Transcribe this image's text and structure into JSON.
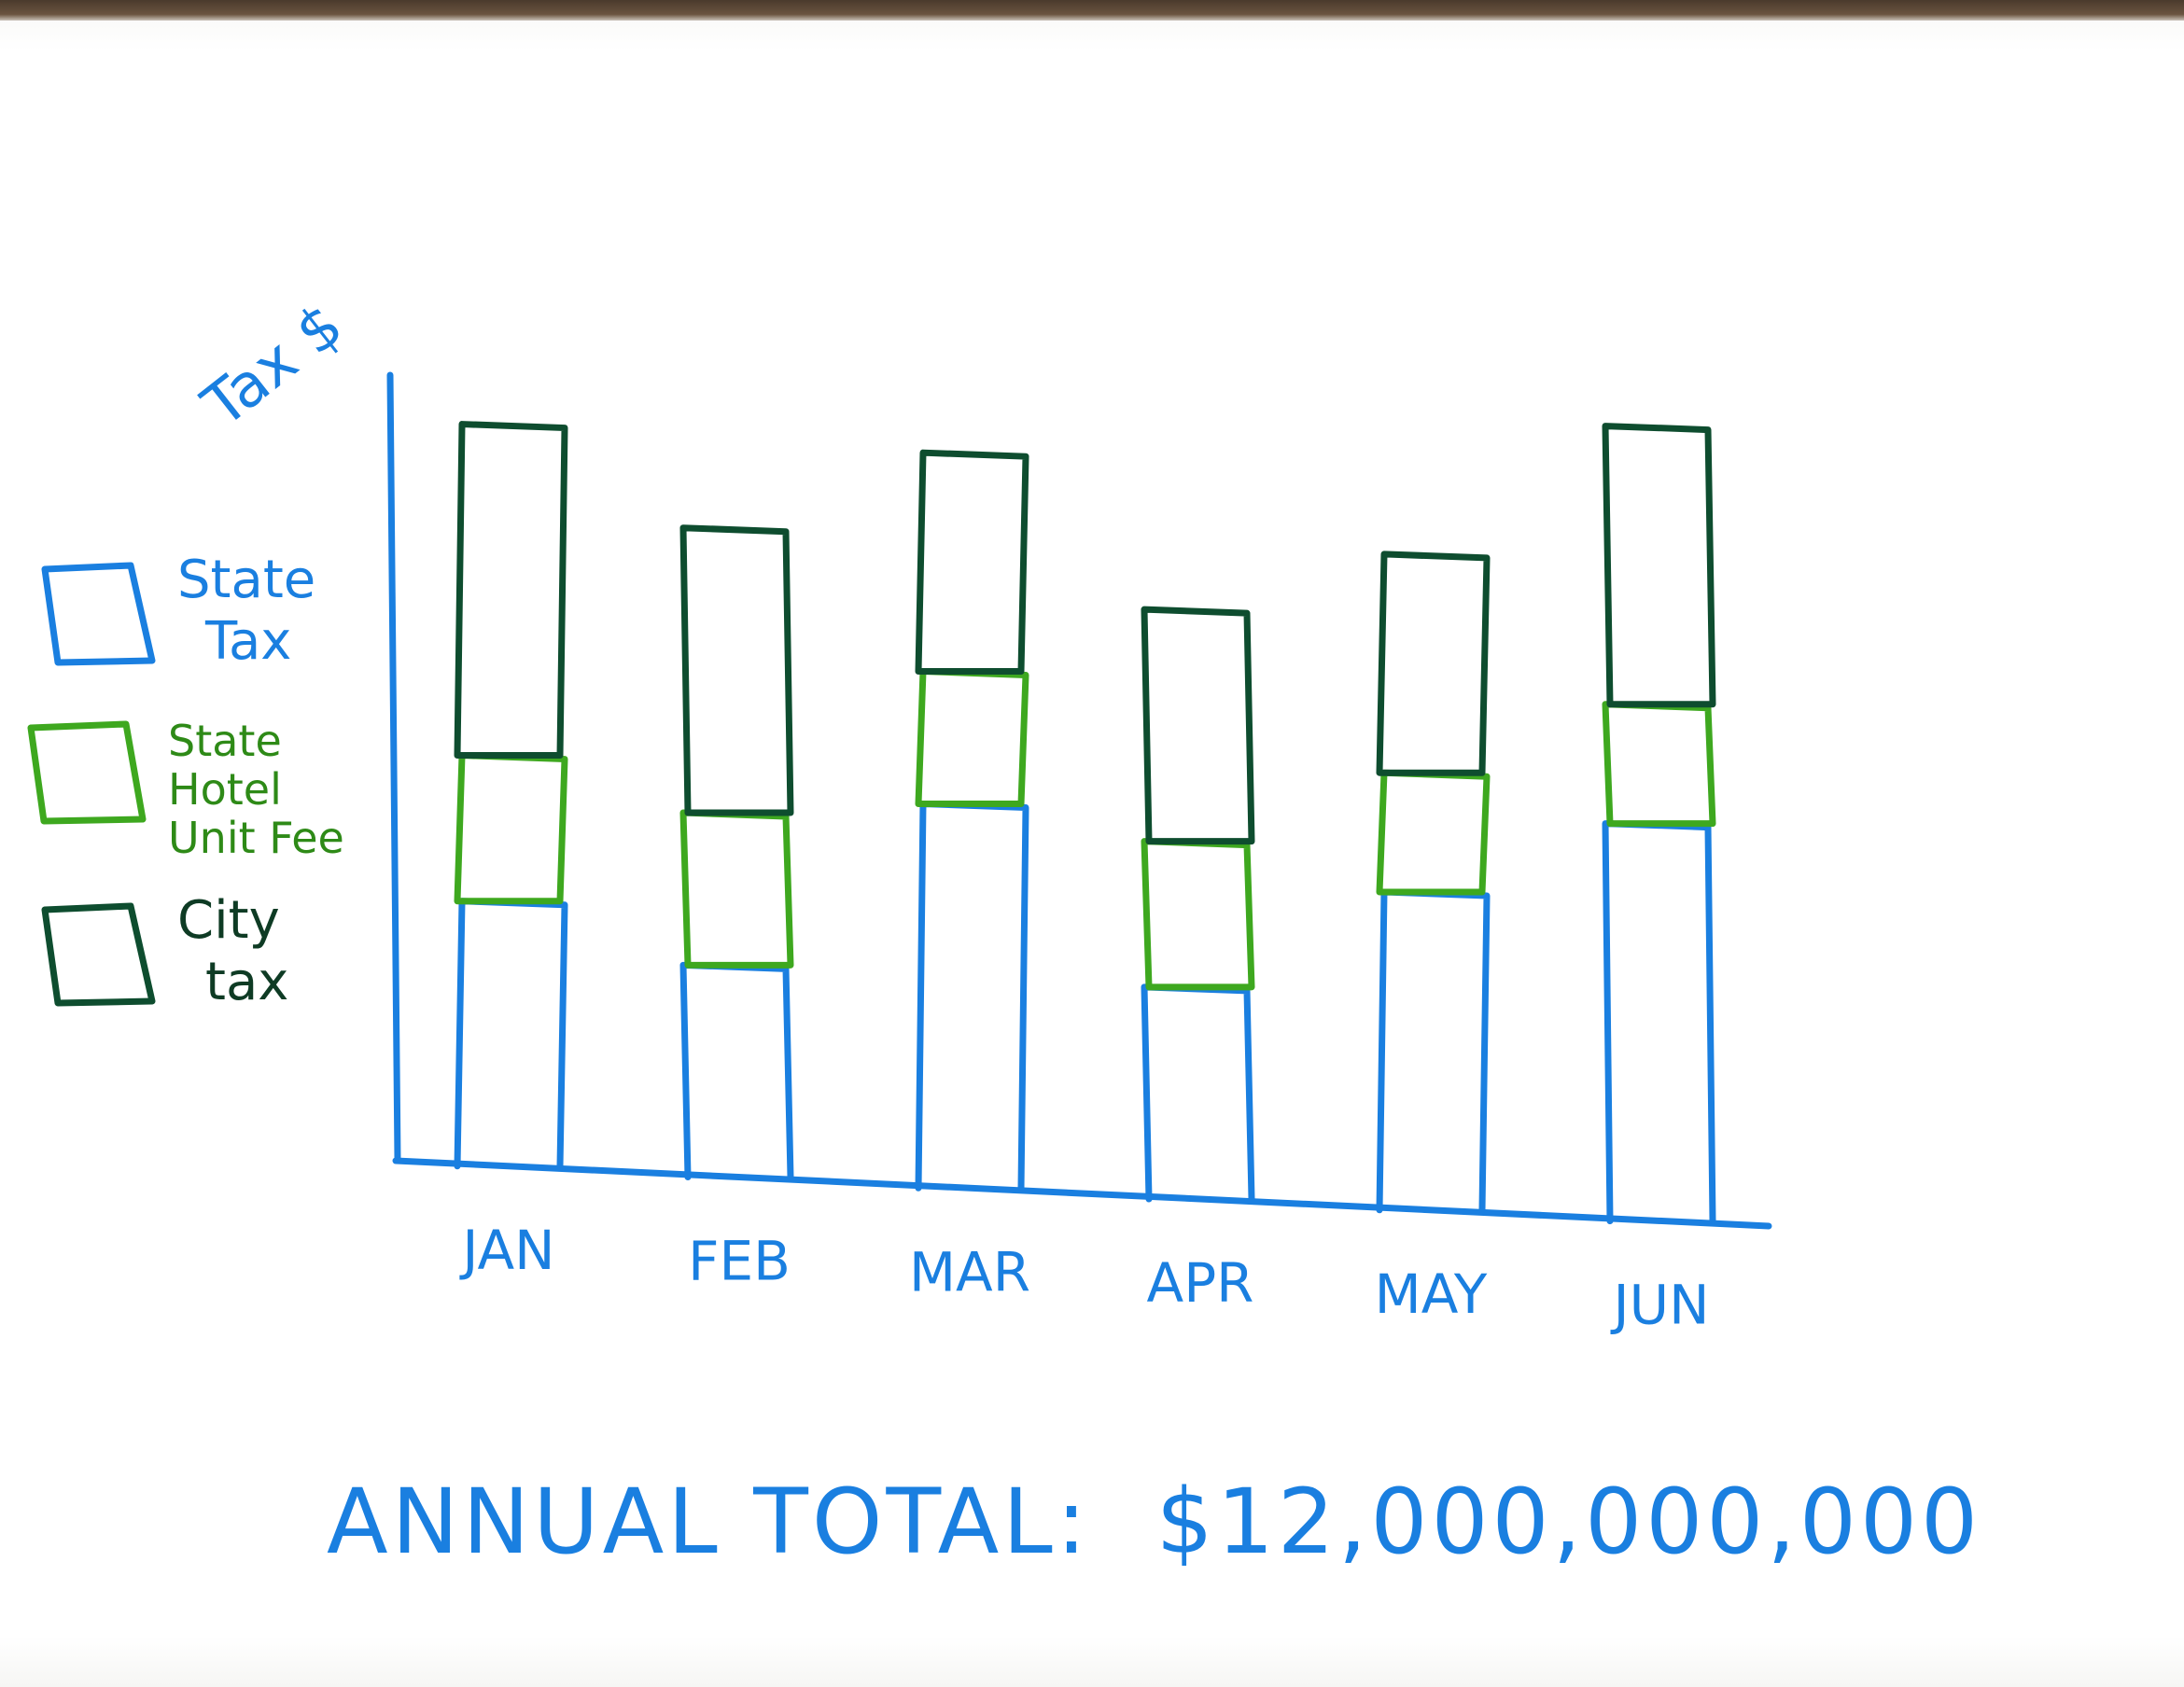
{
  "chart_data": {
    "type": "bar",
    "stacked": true,
    "ylabel": "Tax $",
    "categories": [
      "JAN",
      "FEB",
      "MAR",
      "APR",
      "MAY",
      "JUN"
    ],
    "series": [
      {
        "name": "State Tax",
        "color": "#1a7fe0",
        "values": [
          40,
          32,
          58,
          32,
          48,
          60
        ]
      },
      {
        "name": "State Hotel Unit Fee",
        "color": "#3ea81f",
        "values": [
          22,
          23,
          20,
          22,
          18,
          18
        ]
      },
      {
        "name": "City tax",
        "color": "#0e4d2f",
        "values": [
          50,
          43,
          33,
          35,
          33,
          42
        ]
      }
    ],
    "legend": "left",
    "grid": false,
    "ylim": [
      0,
      120
    ]
  },
  "footer": {
    "label": "ANNUAL TOTAL:",
    "value": "$12,000,000,000"
  }
}
